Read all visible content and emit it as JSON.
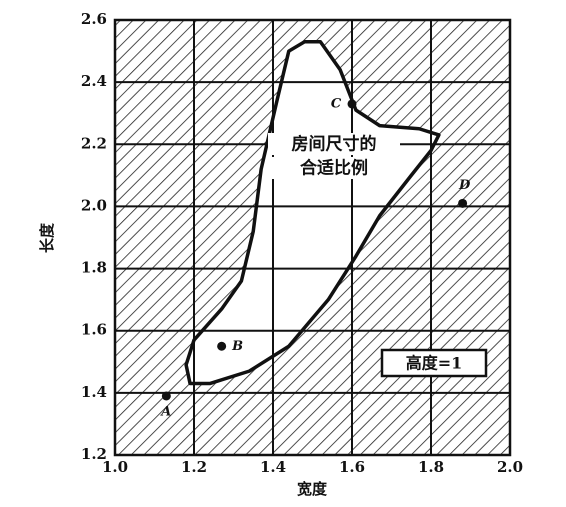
{
  "chart_data": {
    "type": "scatter",
    "x_label": "宽度",
    "y_label": "长度",
    "xlim": [
      1.0,
      2.0
    ],
    "ylim": [
      1.2,
      2.6
    ],
    "xticks": [
      {
        "value": 1.0,
        "label": "1.0"
      },
      1.2,
      1.4,
      1.6,
      1.8,
      {
        "value": 2.0,
        "label": "2.0"
      }
    ],
    "yticks": [
      1.2,
      1.4,
      1.6,
      1.8,
      {
        "value": 2.0,
        "label": "2.0"
      },
      2.2,
      2.4,
      2.6
    ],
    "grid": true,
    "x": [
      1.13,
      1.27,
      1.6,
      1.88
    ],
    "y": [
      1.39,
      1.55,
      2.33,
      2.01
    ],
    "point_labels": [
      "A",
      "B",
      "C",
      "D"
    ],
    "color": "#111111",
    "region": {
      "label_lines": [
        "房间尺寸的",
        "合适比例"
      ],
      "x": [
        1.18,
        1.2,
        1.27,
        1.32,
        1.35,
        1.37,
        1.41,
        1.44,
        1.48,
        1.52,
        1.57,
        1.61,
        1.67,
        1.77,
        1.82,
        1.8,
        1.75,
        1.67,
        1.61,
        1.54,
        1.44,
        1.34,
        1.24,
        1.19
      ],
      "y": [
        1.49,
        1.57,
        1.67,
        1.76,
        1.92,
        2.12,
        2.34,
        2.5,
        2.53,
        2.53,
        2.44,
        2.31,
        2.26,
        2.25,
        2.23,
        2.18,
        2.1,
        1.97,
        1.84,
        1.7,
        1.55,
        1.47,
        1.43,
        1.43
      ]
    },
    "annotation": "高度=1"
  }
}
